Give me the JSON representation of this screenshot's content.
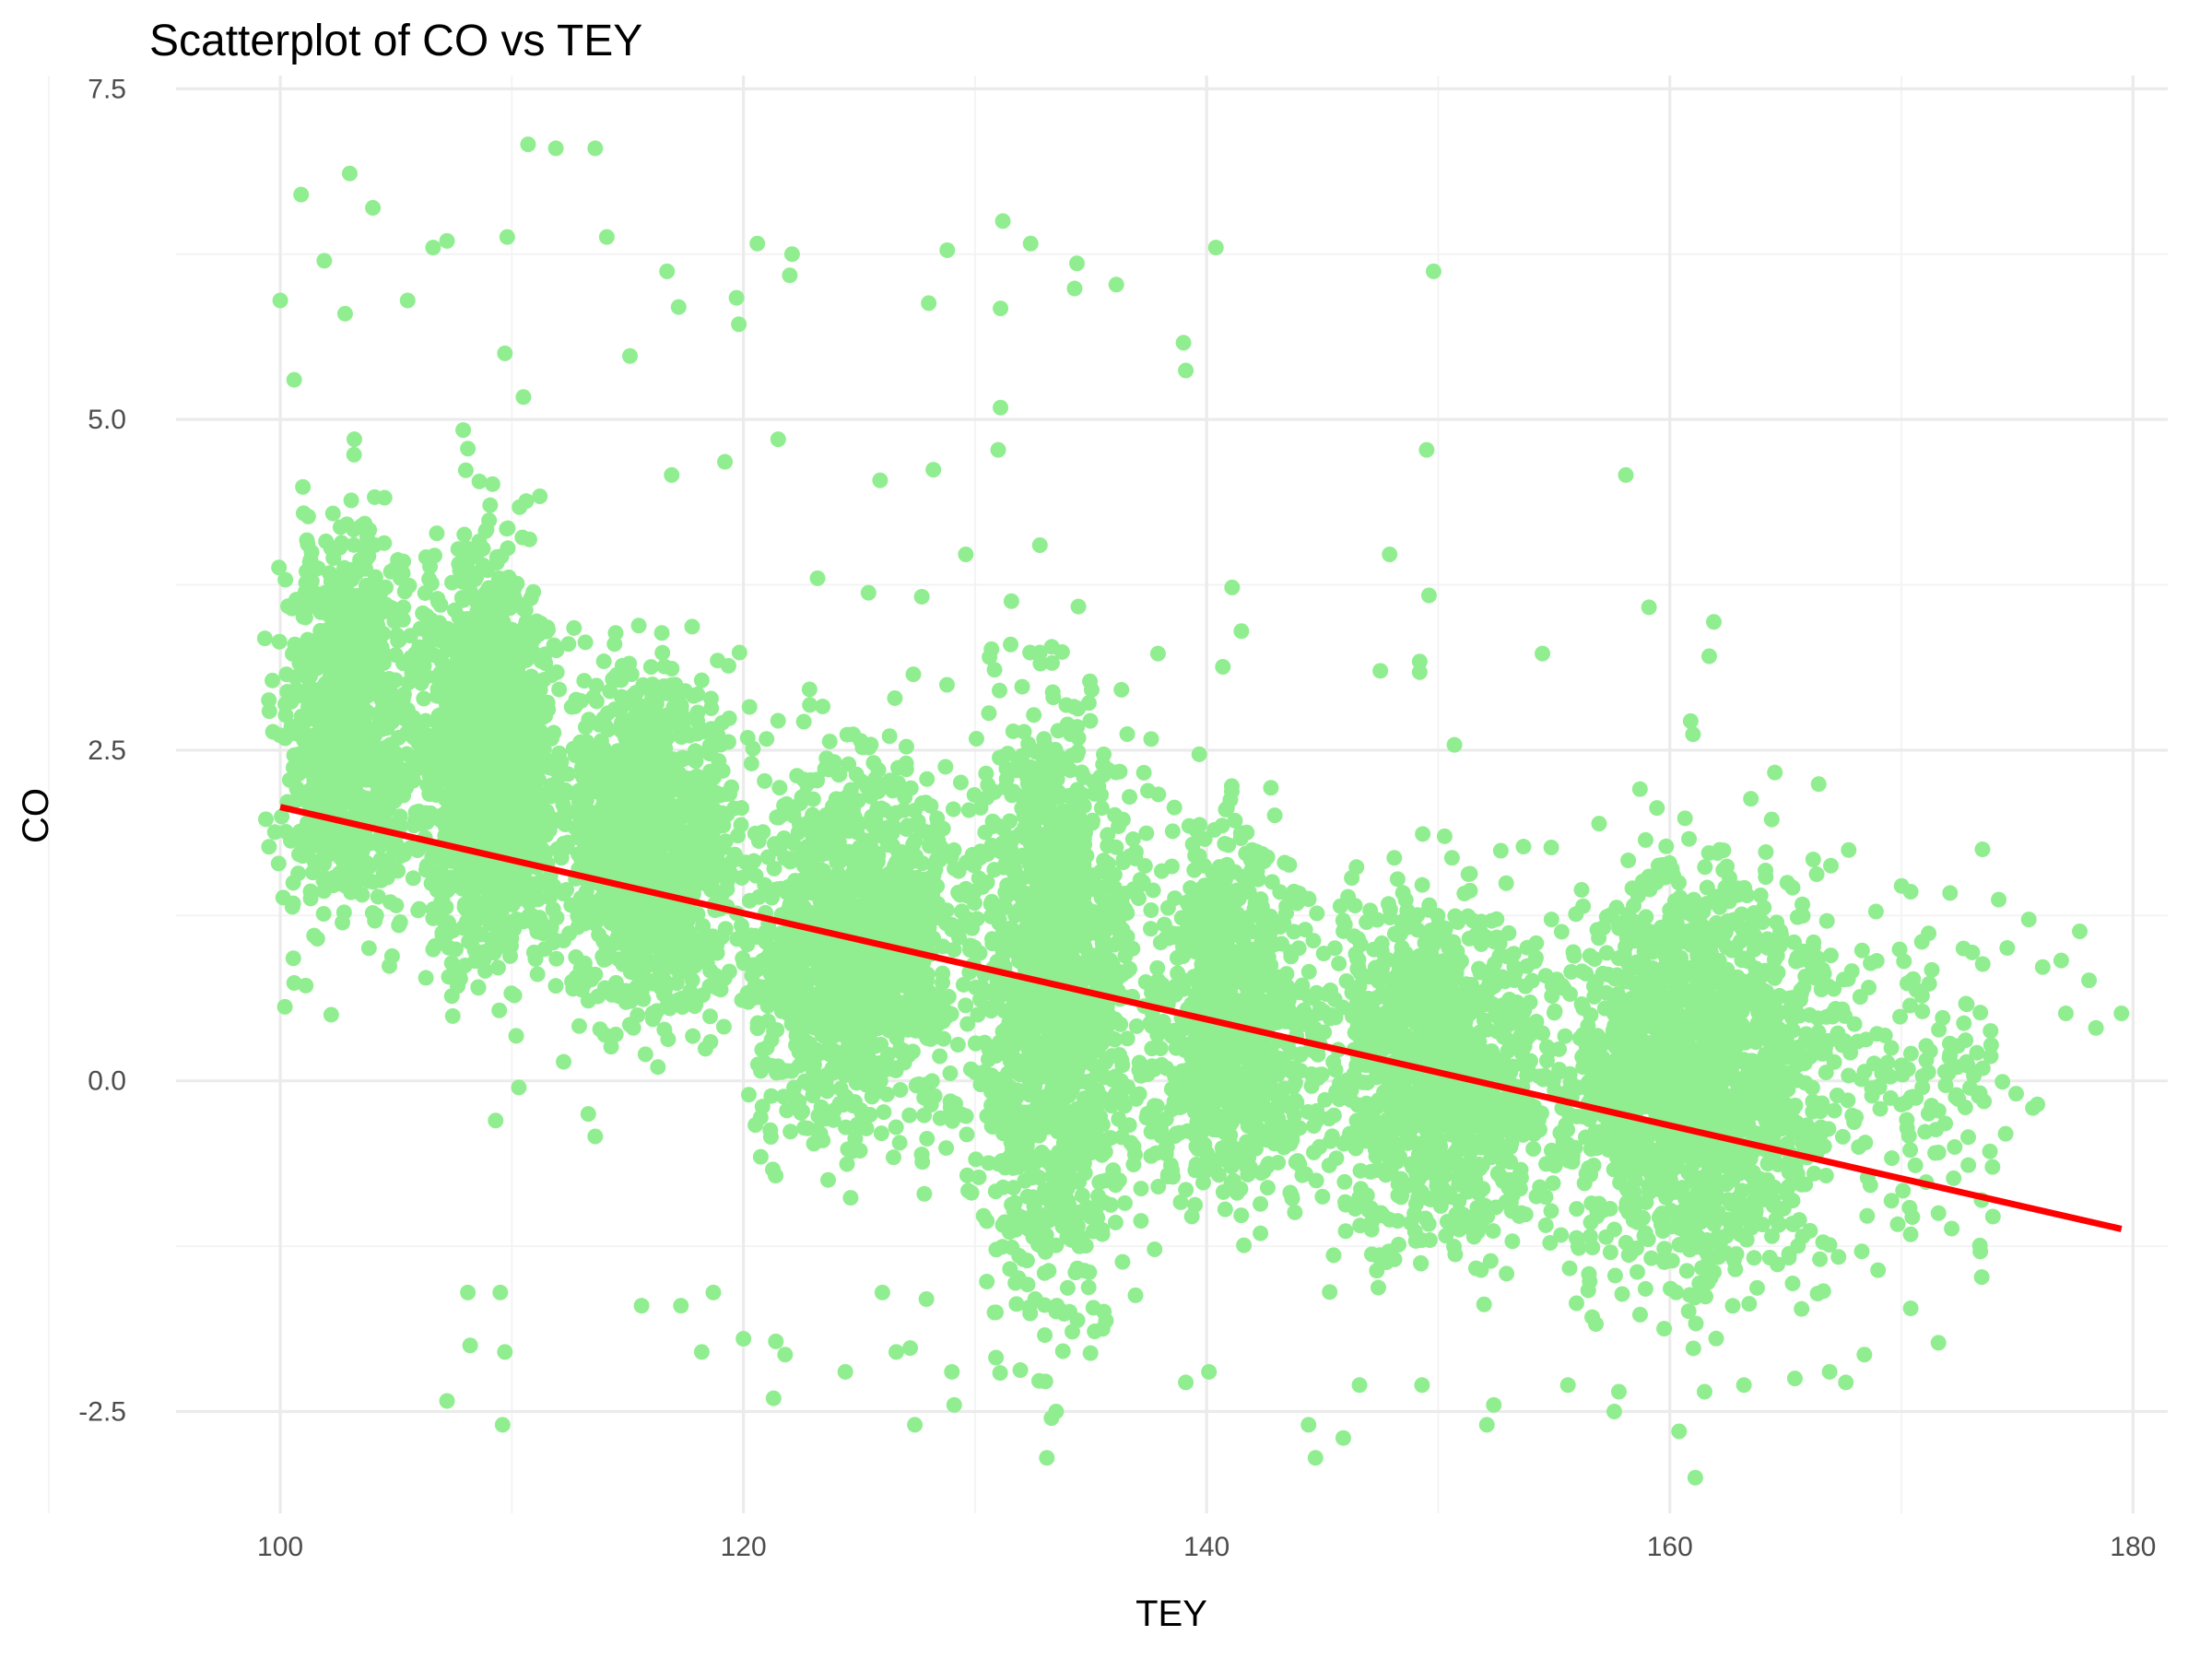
{
  "chart_data": {
    "type": "scatter",
    "title": "Scatterplot of CO vs TEY",
    "xlabel": "TEY",
    "ylabel": "CO",
    "xlim": [
      95.5,
      181.5
    ],
    "ylim": [
      -3.27,
      7.6
    ],
    "x_ticks": [
      100,
      120,
      140,
      160,
      180
    ],
    "x_tick_labels": [
      "100",
      "120",
      "140",
      "160",
      "180"
    ],
    "y_ticks": [
      -2.5,
      0,
      2.5,
      5,
      7.5
    ],
    "y_tick_labels": [
      "-2.5",
      "0.0",
      "2.5",
      "5.0",
      "7.5"
    ],
    "grid": true,
    "point_color": "#90EE90",
    "line_color": "#FF0000",
    "regression_line": {
      "x": [
        100,
        179.5
      ],
      "y": [
        2.07,
        -1.12
      ]
    },
    "clusters": [
      {
        "x_range": [
          100,
          106
        ],
        "y_range": [
          1.2,
          4.2
        ],
        "count": 900
      },
      {
        "x_range": [
          106,
          112
        ],
        "y_range": [
          0.8,
          4.1
        ],
        "count": 1400
      },
      {
        "x_range": [
          112,
          120
        ],
        "y_range": [
          0.4,
          3.2
        ],
        "count": 1100
      },
      {
        "x_range": [
          120,
          130
        ],
        "y_range": [
          -0.5,
          2.5
        ],
        "count": 1200
      },
      {
        "x_range": [
          130,
          137
        ],
        "y_range": [
          -1.7,
          3.0
        ],
        "count": 1300
      },
      {
        "x_range": [
          137,
          145
        ],
        "y_range": [
          -1.0,
          2.0
        ],
        "count": 900
      },
      {
        "x_range": [
          145,
          155
        ],
        "y_range": [
          -1.3,
          1.5
        ],
        "count": 1100
      },
      {
        "x_range": [
          155,
          168
        ],
        "y_range": [
          -1.6,
          1.7
        ],
        "count": 1600
      },
      {
        "x_range": [
          168,
          175
        ],
        "y_range": [
          -1.2,
          1.2
        ],
        "count": 120
      }
    ],
    "outliers": [
      [
        100.9,
        6.7
      ],
      [
        103,
        6.86
      ],
      [
        104,
        6.6
      ],
      [
        110.7,
        7.08
      ],
      [
        111.9,
        7.05
      ],
      [
        113.6,
        7.05
      ],
      [
        100,
        5.9
      ],
      [
        100.6,
        5.3
      ],
      [
        101.9,
        6.2
      ],
      [
        102.8,
        5.8
      ],
      [
        105.5,
        5.9
      ],
      [
        106.6,
        6.3
      ],
      [
        107.2,
        6.35
      ],
      [
        109.8,
        6.38
      ],
      [
        114.1,
        6.38
      ],
      [
        116.7,
        6.12
      ],
      [
        117.2,
        5.85
      ],
      [
        115.1,
        5.48
      ],
      [
        119.7,
        5.92
      ],
      [
        119.8,
        5.72
      ],
      [
        120.6,
        6.33
      ],
      [
        122.1,
        6.25
      ],
      [
        122,
        6.09
      ],
      [
        109.7,
        5.5
      ],
      [
        110.5,
        5.17
      ],
      [
        107.9,
        4.92
      ],
      [
        108.1,
        4.78
      ],
      [
        103.2,
        4.85
      ],
      [
        121.5,
        4.85
      ],
      [
        119.2,
        4.68
      ],
      [
        116.9,
        4.58
      ],
      [
        125.9,
        4.54
      ],
      [
        128.2,
        4.62
      ],
      [
        128.8,
        6.28
      ],
      [
        131.2,
        6.5
      ],
      [
        132.4,
        6.33
      ],
      [
        134.4,
        6.18
      ],
      [
        136.1,
        6.02
      ],
      [
        134.3,
        5.99
      ],
      [
        131.1,
        5.84
      ],
      [
        128,
        5.88
      ],
      [
        131.1,
        5.09
      ],
      [
        131,
        4.77
      ],
      [
        132.8,
        4.05
      ],
      [
        140.4,
        6.3
      ],
      [
        139,
        5.58
      ],
      [
        139.1,
        5.37
      ],
      [
        149.8,
        6.12
      ],
      [
        149.5,
        4.77
      ],
      [
        158.1,
        4.58
      ],
      [
        141.1,
        3.73
      ],
      [
        141.5,
        3.4
      ],
      [
        147.9,
        3.98
      ],
      [
        149.6,
        3.67
      ],
      [
        159.1,
        3.58
      ],
      [
        161.9,
        3.47
      ],
      [
        140.7,
        3.13
      ],
      [
        147.5,
        3.1
      ],
      [
        149.2,
        3.17
      ],
      [
        149.2,
        3.09
      ],
      [
        154.5,
        3.23
      ],
      [
        161.7,
        3.21
      ],
      [
        160.9,
        2.72
      ],
      [
        161,
        2.62
      ],
      [
        150.7,
        2.54
      ],
      [
        137.9,
        3.23
      ],
      [
        129.6,
        3.98
      ],
      [
        127.7,
        3.66
      ],
      [
        125.4,
        3.69
      ],
      [
        123.2,
        3.8
      ],
      [
        100.6,
        0.74
      ],
      [
        101.1,
        0.72
      ],
      [
        102.2,
        0.5
      ],
      [
        100.2,
        0.56
      ],
      [
        109.3,
        -0.3
      ],
      [
        113.3,
        -0.25
      ],
      [
        113.6,
        -0.42
      ],
      [
        110.3,
        -0.05
      ],
      [
        108.1,
        -1.6
      ],
      [
        109.5,
        -1.6
      ],
      [
        107.2,
        -2.42
      ],
      [
        108.2,
        -2.0
      ],
      [
        109.7,
        -2.05
      ],
      [
        109.6,
        -2.6
      ],
      [
        115.6,
        -1.7
      ],
      [
        117.3,
        -1.7
      ],
      [
        118.7,
        -1.6
      ],
      [
        118.2,
        -2.05
      ],
      [
        120,
        -1.95
      ],
      [
        121.4,
        -1.97
      ],
      [
        121.8,
        -2.07
      ],
      [
        121.3,
        -2.4
      ],
      [
        124.4,
        -2.2
      ],
      [
        127.4,
        -2.6
      ],
      [
        129,
        -2.2
      ],
      [
        129.1,
        -2.45
      ],
      [
        126.6,
        -2.05
      ],
      [
        127.2,
        -2.02
      ],
      [
        127.9,
        -1.65
      ],
      [
        126,
        -1.6
      ],
      [
        130.9,
        -1.75
      ],
      [
        132.6,
        -1.65
      ],
      [
        133.5,
        -2.5
      ],
      [
        133.1,
        -2.85
      ],
      [
        133.3,
        -2.55
      ],
      [
        139.1,
        -2.28
      ],
      [
        140.1,
        -2.2
      ],
      [
        144.4,
        -2.6
      ],
      [
        144.7,
        -2.85
      ],
      [
        145.9,
        -2.7
      ],
      [
        146.6,
        -2.3
      ],
      [
        149.3,
        -2.3
      ],
      [
        152.1,
        -2.6
      ],
      [
        152.4,
        -2.45
      ],
      [
        155.6,
        -2.3
      ],
      [
        157.6,
        -2.5
      ],
      [
        157.8,
        -2.35
      ],
      [
        160.4,
        -2.65
      ],
      [
        161.1,
        -3.0
      ],
      [
        161.5,
        -2.35
      ],
      [
        163.2,
        -2.3
      ],
      [
        165.4,
        -2.25
      ],
      [
        166.9,
        -2.2
      ],
      [
        167.6,
        -2.28
      ],
      [
        168.4,
        -2.07
      ],
      [
        170.4,
        -1.72
      ],
      [
        171.6,
        -1.98
      ],
      [
        171.6,
        -1.0
      ],
      [
        172.3,
        -0.5
      ],
      [
        174.5,
        -0.4
      ],
      [
        173.5,
        1.75
      ],
      [
        175.5,
        1.22
      ],
      [
        174.2,
        1.37
      ],
      [
        176.1,
        0.86
      ],
      [
        176.9,
        0.91
      ],
      [
        177.7,
        1.13
      ],
      [
        178.1,
        0.76
      ],
      [
        178.4,
        0.4
      ],
      [
        179.5,
        0.51
      ],
      [
        177.1,
        0.51
      ],
      [
        170.4,
        1.43
      ],
      [
        172.1,
        1.42
      ],
      [
        168.9,
        1.28
      ]
    ]
  }
}
